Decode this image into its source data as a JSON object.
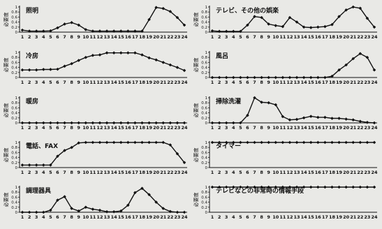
{
  "chart_data": [
    {
      "type": "line",
      "title": "照明",
      "ylabel": "必要度",
      "x": [
        1,
        2,
        3,
        4,
        5,
        6,
        7,
        8,
        9,
        10,
        11,
        12,
        13,
        14,
        15,
        16,
        17,
        18,
        19,
        20,
        21,
        22,
        23,
        24
      ],
      "ylim": [
        0,
        1
      ],
      "yticks": [
        "0",
        "0.2",
        "0.4",
        "0.6",
        "0.8",
        "1"
      ],
      "values": [
        0.08,
        0.04,
        0.04,
        0.04,
        0.05,
        0.17,
        0.32,
        0.38,
        0.28,
        0.1,
        0.04,
        0.04,
        0.04,
        0.04,
        0.04,
        0.04,
        0.04,
        0.04,
        0.5,
        0.98,
        0.94,
        0.82,
        0.58,
        0.28
      ]
    },
    {
      "type": "line",
      "title": "テレビ、その他の娯楽",
      "ylabel": "必要度",
      "x": [
        1,
        2,
        3,
        4,
        5,
        6,
        7,
        8,
        9,
        10,
        11,
        12,
        13,
        14,
        15,
        16,
        17,
        18,
        19,
        20,
        21,
        22,
        23,
        24
      ],
      "ylim": [
        0,
        1
      ],
      "yticks": [
        "0",
        "0.2",
        "0.4",
        "0.6",
        "0.8",
        "1"
      ],
      "values": [
        0.05,
        0.03,
        0.03,
        0.03,
        0.03,
        0.28,
        0.62,
        0.58,
        0.32,
        0.26,
        0.22,
        0.58,
        0.4,
        0.2,
        0.18,
        0.2,
        0.22,
        0.3,
        0.62,
        0.88,
        1.0,
        0.95,
        0.55,
        0.2
      ]
    },
    {
      "type": "line",
      "title": "冷房",
      "ylabel": "必要度",
      "x": [
        1,
        2,
        3,
        4,
        5,
        6,
        7,
        8,
        9,
        10,
        11,
        12,
        13,
        14,
        15,
        16,
        17,
        18,
        19,
        20,
        21,
        22,
        23,
        24
      ],
      "ylim": [
        0,
        1
      ],
      "yticks": [
        "0",
        "0.2",
        "0.4",
        "0.6",
        "0.8",
        "1"
      ],
      "values": [
        0.3,
        0.3,
        0.3,
        0.32,
        0.32,
        0.33,
        0.45,
        0.55,
        0.68,
        0.8,
        0.88,
        0.9,
        0.98,
        0.98,
        0.98,
        0.98,
        0.98,
        0.9,
        0.78,
        0.7,
        0.6,
        0.5,
        0.4,
        0.28
      ]
    },
    {
      "type": "line",
      "title": "風呂",
      "ylabel": "必要度",
      "x": [
        1,
        2,
        3,
        4,
        5,
        6,
        7,
        8,
        9,
        10,
        11,
        12,
        13,
        14,
        15,
        16,
        17,
        18,
        19,
        20,
        21,
        22,
        23,
        24
      ],
      "ylim": [
        0,
        1
      ],
      "yticks": [
        "0",
        "0.2",
        "0.4",
        "0.6",
        "0.8",
        "1"
      ],
      "values": [
        0,
        0,
        0,
        0,
        0,
        0,
        0,
        0,
        0,
        0,
        0,
        0,
        0,
        0,
        0,
        0,
        0,
        0.05,
        0.3,
        0.5,
        0.75,
        0.95,
        0.8,
        0.3
      ]
    },
    {
      "type": "line",
      "title": "暖房",
      "ylabel": "必要度",
      "x": [
        1,
        2,
        3,
        4,
        5,
        6,
        7,
        8,
        9,
        10,
        11,
        12,
        13,
        14,
        15,
        16,
        17,
        18,
        19,
        20,
        21,
        22,
        23,
        24
      ],
      "ylim": [
        0,
        1
      ],
      "yticks": [
        "0",
        "0.2",
        "0.4",
        "0.6",
        "0.8",
        "1"
      ],
      "values": [
        0,
        0,
        0,
        0,
        0,
        0,
        0,
        0,
        0,
        0,
        0,
        0,
        0,
        0,
        0,
        0,
        0,
        0,
        0,
        0,
        0,
        0,
        0,
        0
      ]
    },
    {
      "type": "line",
      "title": "掃除洗濯",
      "ylabel": "必要度",
      "x": [
        1,
        2,
        3,
        4,
        5,
        6,
        7,
        8,
        9,
        10,
        11,
        12,
        13,
        14,
        15,
        16,
        17,
        18,
        19,
        20,
        21,
        22,
        23,
        24
      ],
      "ylim": [
        0,
        1
      ],
      "yticks": [
        "0",
        "0.2",
        "0.4",
        "0.6",
        "0.8",
        "1"
      ],
      "values": [
        0,
        0,
        0,
        0,
        0,
        0.3,
        1.0,
        0.82,
        0.8,
        0.72,
        0.25,
        0.12,
        0.14,
        0.2,
        0.26,
        0.22,
        0.22,
        0.18,
        0.18,
        0.15,
        0.12,
        0.06,
        0.02,
        0
      ]
    },
    {
      "type": "line",
      "title": "電話、FAX",
      "ylabel": "必要度",
      "x": [
        1,
        2,
        3,
        4,
        5,
        6,
        7,
        8,
        9,
        10,
        11,
        12,
        13,
        14,
        15,
        16,
        17,
        18,
        19,
        20,
        21,
        22,
        23,
        24
      ],
      "ylim": [
        0,
        1
      ],
      "yticks": [
        "0",
        "0.2",
        "0.4",
        "0.6",
        "0.8",
        "1"
      ],
      "values": [
        0.1,
        0.1,
        0.1,
        0.1,
        0.1,
        0.45,
        0.68,
        0.8,
        0.98,
        1,
        1,
        1,
        1,
        1,
        1,
        1,
        1,
        1,
        1,
        1,
        1,
        0.9,
        0.55,
        0.2
      ]
    },
    {
      "type": "line",
      "title": "タイマー",
      "ylabel": "必要度",
      "x": [
        1,
        2,
        3,
        4,
        5,
        6,
        7,
        8,
        9,
        10,
        11,
        12,
        13,
        14,
        15,
        16,
        17,
        18,
        19,
        20,
        21,
        22,
        23,
        24
      ],
      "ylim": [
        0,
        1
      ],
      "yticks": [
        "0",
        "0.2",
        "0.4",
        "0.6",
        "0.8",
        "1"
      ],
      "values": [
        1,
        1,
        1,
        1,
        1,
        1,
        1,
        1,
        1,
        1,
        1,
        1,
        1,
        1,
        1,
        1,
        1,
        1,
        1,
        1,
        1,
        1,
        1,
        1
      ]
    },
    {
      "type": "line",
      "title": "調理器具",
      "ylabel": "必要度",
      "x": [
        1,
        2,
        3,
        4,
        5,
        6,
        7,
        8,
        9,
        10,
        11,
        12,
        13,
        14,
        15,
        16,
        17,
        18,
        19,
        20,
        21,
        22,
        23,
        24
      ],
      "ylim": [
        0,
        1
      ],
      "yticks": [
        "0",
        "0.2",
        "0.4",
        "0.6",
        "0.8",
        "1"
      ],
      "values": [
        0,
        0,
        0,
        0,
        0.08,
        0.48,
        0.62,
        0.15,
        0.05,
        0.2,
        0.12,
        0.08,
        0.02,
        0.02,
        0.05,
        0.28,
        0.78,
        0.95,
        0.7,
        0.4,
        0.15,
        0.03,
        0,
        0
      ]
    },
    {
      "type": "line",
      "title": "テレビなどの非常時の情報手段",
      "ylabel": "必要度",
      "x": [
        1,
        2,
        3,
        4,
        5,
        6,
        7,
        8,
        9,
        10,
        11,
        12,
        13,
        14,
        15,
        16,
        17,
        18,
        19,
        20,
        21,
        22,
        23,
        24
      ],
      "ylim": [
        0,
        1
      ],
      "yticks": [
        "0",
        "0.2",
        "0.4",
        "0.6",
        "0.8",
        "1"
      ],
      "values": [
        1,
        1,
        1,
        1,
        1,
        1,
        1,
        1,
        1,
        1,
        1,
        1,
        1,
        1,
        1,
        1,
        1,
        1,
        1,
        1,
        1,
        1,
        1,
        1
      ]
    }
  ]
}
